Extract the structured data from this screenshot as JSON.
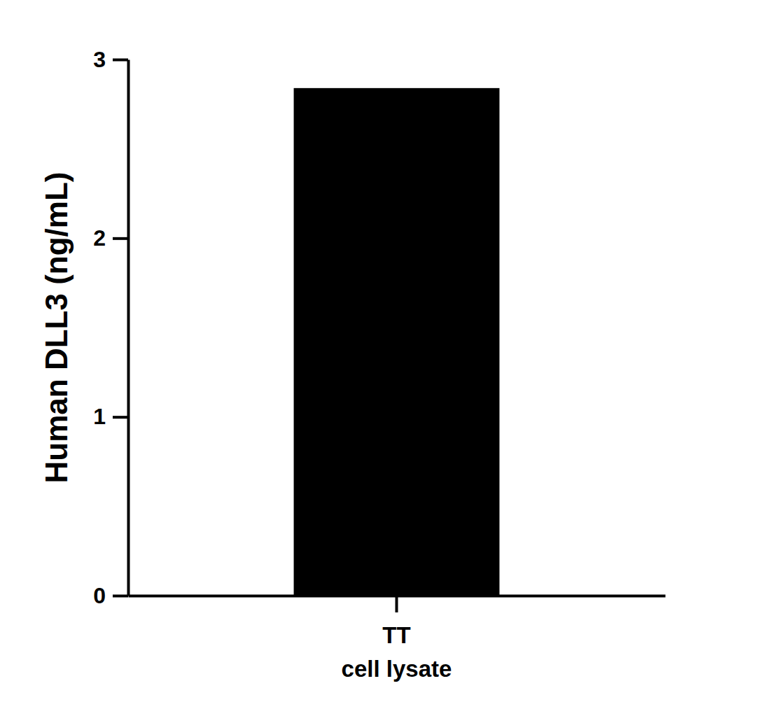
{
  "chart_data": {
    "type": "bar",
    "y_label": "Human DLL3 (ng/mL)",
    "categories": [
      "TT\ncell lysate"
    ],
    "values": [
      2.84
    ],
    "color": "#000000",
    "ylim": [
      0,
      3
    ],
    "yticks": [
      0,
      1,
      2,
      3
    ],
    "grid": false
  }
}
